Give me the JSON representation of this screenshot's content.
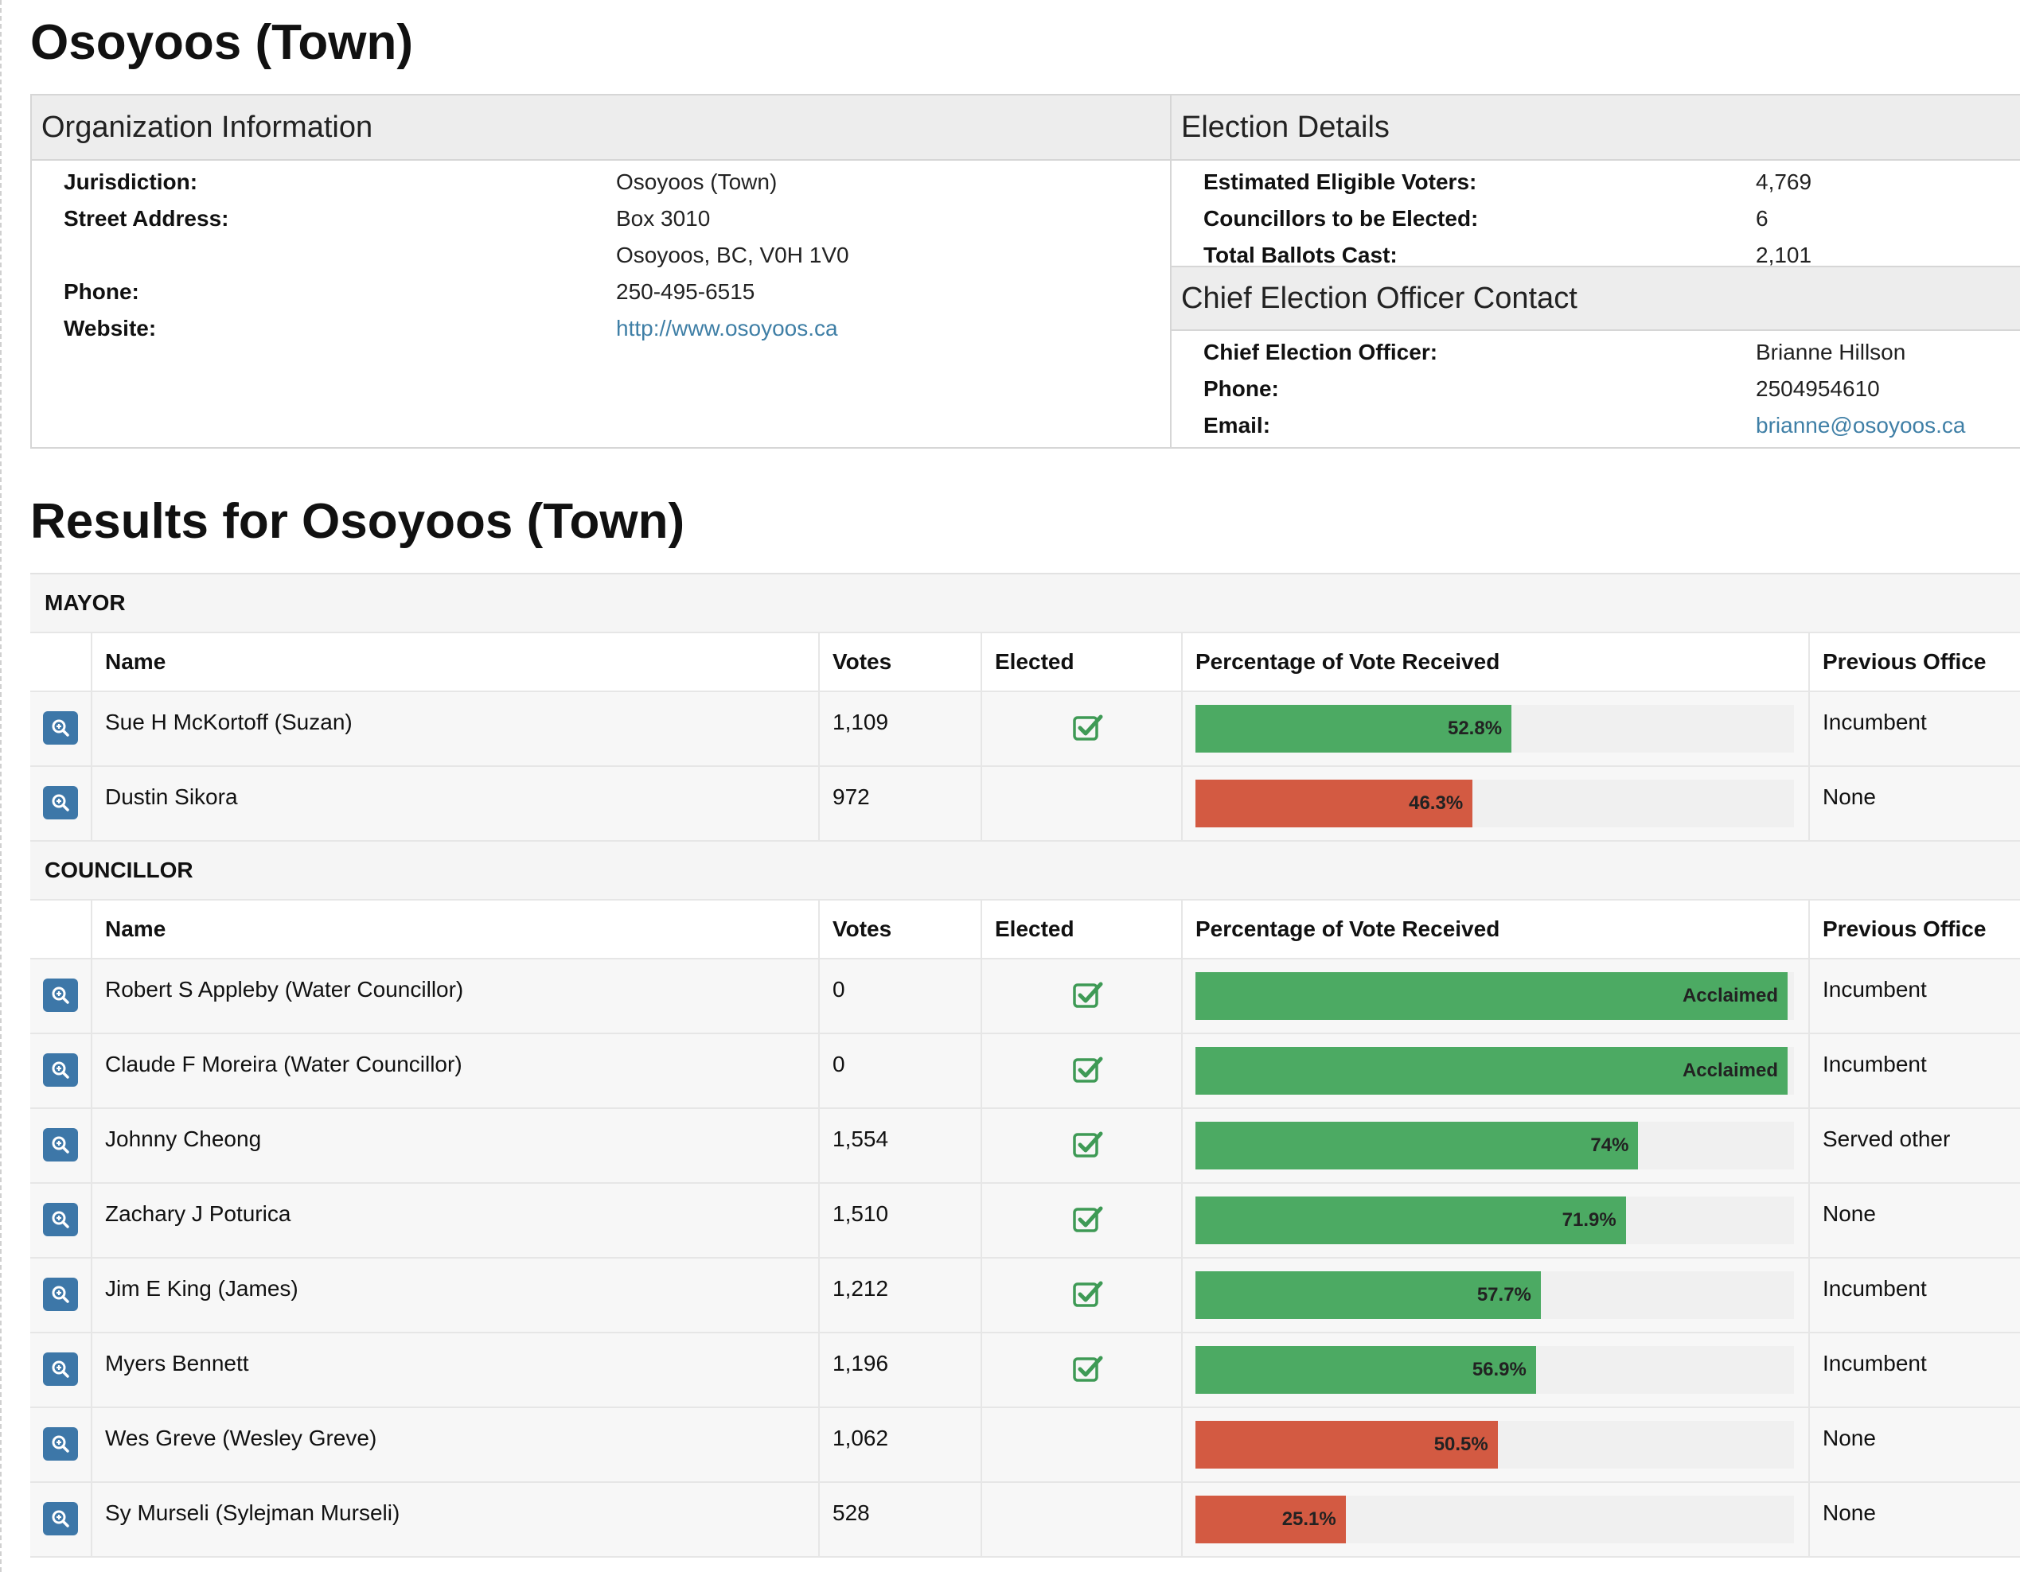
{
  "title": "Osoyoos (Town)",
  "org": {
    "heading": "Organization Information",
    "rows": [
      {
        "label": "Jurisdiction:",
        "value": "Osoyoos (Town)"
      },
      {
        "label": "Street Address:",
        "value": "Box 3010"
      },
      {
        "label": "",
        "value": "Osoyoos, BC, V0H 1V0"
      },
      {
        "label": "Phone:",
        "value": "250-495-6515"
      },
      {
        "label": "Website:",
        "value": "http://www.osoyoos.ca"
      }
    ]
  },
  "election": {
    "heading": "Election Details",
    "rows": [
      {
        "label": "Estimated Eligible Voters:",
        "value": "4,769"
      },
      {
        "label": "Councillors to be Elected:",
        "value": "6"
      },
      {
        "label": "Total Ballots Cast:",
        "value": "2,101"
      }
    ]
  },
  "ceo": {
    "heading": "Chief Election Officer Contact",
    "rows": [
      {
        "label": "Chief Election Officer:",
        "value": "Brianne Hillson"
      },
      {
        "label": "Phone:",
        "value": "2504954610"
      },
      {
        "label": "Email:",
        "value": "brianne@osoyoos.ca"
      }
    ]
  },
  "results_title": "Results for Osoyoos (Town)",
  "columns": {
    "name": "Name",
    "votes": "Votes",
    "elected": "Elected",
    "pct": "Percentage of Vote Received",
    "prev": "Previous Office"
  },
  "sections": [
    {
      "title": "MAYOR",
      "candidates": [
        {
          "name": "Sue H McKortoff (Suzan)",
          "votes": "1,109",
          "elected": true,
          "pct_label": "52.8%",
          "pct": 52.8,
          "prev": "Incumbent"
        },
        {
          "name": "Dustin Sikora",
          "votes": "972",
          "elected": false,
          "pct_label": "46.3%",
          "pct": 46.3,
          "prev": "None"
        }
      ]
    },
    {
      "title": "COUNCILLOR",
      "candidates": [
        {
          "name": "Robert S Appleby (Water Councillor)",
          "votes": "0",
          "elected": true,
          "pct_label": "Acclaimed",
          "pct": 100,
          "prev": "Incumbent"
        },
        {
          "name": "Claude F Moreira (Water Councillor)",
          "votes": "0",
          "elected": true,
          "pct_label": "Acclaimed",
          "pct": 100,
          "prev": "Incumbent"
        },
        {
          "name": "Johnny Cheong",
          "votes": "1,554",
          "elected": true,
          "pct_label": "74%",
          "pct": 74,
          "prev": "Served other"
        },
        {
          "name": "Zachary J Poturica",
          "votes": "1,510",
          "elected": true,
          "pct_label": "71.9%",
          "pct": 71.9,
          "prev": "None"
        },
        {
          "name": "Jim E King (James)",
          "votes": "1,212",
          "elected": true,
          "pct_label": "57.7%",
          "pct": 57.7,
          "prev": "Incumbent"
        },
        {
          "name": "Myers Bennett",
          "votes": "1,196",
          "elected": true,
          "pct_label": "56.9%",
          "pct": 56.9,
          "prev": "Incumbent"
        },
        {
          "name": "Wes Greve (Wesley Greve)",
          "votes": "1,062",
          "elected": false,
          "pct_label": "50.5%",
          "pct": 50.5,
          "prev": "None"
        },
        {
          "name": "Sy Murseli (Sylejman Murseli)",
          "votes": "528",
          "elected": false,
          "pct_label": "25.1%",
          "pct": 25.1,
          "prev": "None"
        }
      ]
    }
  ],
  "colors": {
    "elected_bar": "#4caa63",
    "not_elected_bar": "#d35a42",
    "link": "#3f7fa6",
    "zoom_button": "#3d77a8"
  },
  "icons": {
    "row_action": "zoom-in-icon",
    "elected": "checkbox-checked-icon"
  }
}
